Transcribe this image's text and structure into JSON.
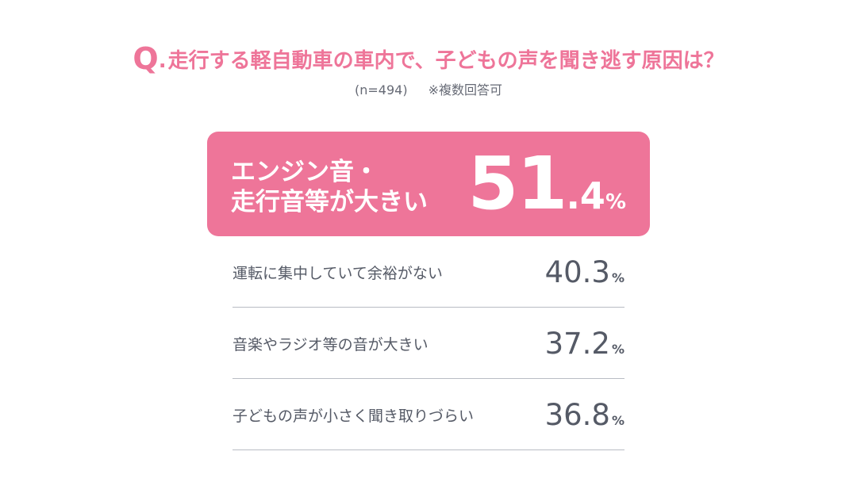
{
  "question": {
    "prefix": "Q",
    "dot": ".",
    "text": "走行する軽自動車の車内で、子どもの声を聞き逃す原因は？"
  },
  "note": {
    "sample": "(n=494)",
    "multi": "※複数回答可"
  },
  "colors": {
    "accent": "#ee7599",
    "text": "#555a66",
    "divider": "#b9bcc4"
  },
  "chart_data": {
    "type": "table",
    "unit": "%",
    "rows": [
      {
        "label_line1": "エンジン音・",
        "label_line2": "走行音等が大きい",
        "label": "エンジン音・走行音等が大きい",
        "value": 51.4,
        "value_int": "51",
        "value_dec": ".4",
        "highlight": true
      },
      {
        "label": "運転に集中していて余裕がない",
        "value": 40.3,
        "value_text": "40.3",
        "highlight": false
      },
      {
        "label": "音楽やラジオ等の音が大きい",
        "value": 37.2,
        "value_text": "37.2",
        "highlight": false
      },
      {
        "label": "子どもの声が小さく聞き取りづらい",
        "value": 36.8,
        "value_text": "36.8",
        "highlight": false
      }
    ]
  }
}
